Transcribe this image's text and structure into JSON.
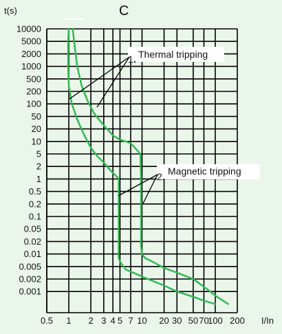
{
  "chart_data": {
    "type": "line",
    "title": "C",
    "xlabel": "I/In",
    "ylabel": "t(s)",
    "x_scale": "log",
    "y_scale": "log",
    "xlim": [
      0.5,
      200
    ],
    "ylim": [
      0.0005,
      10000
    ],
    "grid": true,
    "x_ticks": [
      "0.5",
      "1",
      "2",
      "3",
      "4",
      "5",
      "7",
      "10",
      "20",
      "30",
      "50",
      "70",
      "100",
      "200"
    ],
    "y_ticks": [
      "10000",
      "5000",
      "2000",
      "1000",
      "500",
      "200",
      "100",
      "50",
      "20",
      "10",
      "5",
      "2",
      "1",
      "0.5",
      "0.2",
      "0.1",
      "0.05",
      "0.02",
      "0.01",
      "0.005",
      "0.002",
      "0.001"
    ],
    "colors": {
      "curve": "#2db84d",
      "grid": "#000000",
      "background": "#eaf6ea"
    },
    "series": [
      {
        "x": [
          1.0,
          0.98,
          0.98,
          1.0,
          1.1,
          1.3,
          1.6,
          2.0,
          2.5,
          3.0,
          3.5,
          4.0,
          4.5,
          4.8,
          4.8,
          4.8,
          5.0,
          6.0,
          8.0,
          12,
          20,
          30,
          50,
          70,
          100
        ],
        "y": [
          10000,
          5000,
          1000,
          300,
          100,
          40,
          15,
          7,
          4,
          2.7,
          1.8,
          1.4,
          1.15,
          1.0,
          0.1,
          0.008,
          0.0065,
          0.004,
          0.003,
          0.002,
          0.0014,
          0.001,
          0.00075,
          0.0006,
          0.0005
        ]
      },
      {
        "x": [
          1.13,
          1.18,
          1.3,
          1.5,
          1.8,
          2.2,
          2.7,
          3.2,
          4.0,
          5.0,
          6.0,
          7.0,
          8.0,
          9.5,
          9.7,
          9.7,
          9.7,
          10,
          11,
          14,
          20,
          30,
          50,
          70,
          100,
          150
        ],
        "y": [
          10000,
          5000,
          1000,
          300,
          120,
          60,
          35,
          22,
          14,
          11,
          10,
          9,
          7,
          5,
          1.0,
          0.1,
          0.015,
          0.01,
          0.008,
          0.0065,
          0.0045,
          0.0032,
          0.002,
          0.0013,
          0.0008,
          0.0005
        ]
      }
    ],
    "annotations": [
      {
        "number": "1",
        "text": "Thermal tripping"
      },
      {
        "number": "2",
        "text": "Magnetic tripping"
      }
    ]
  }
}
